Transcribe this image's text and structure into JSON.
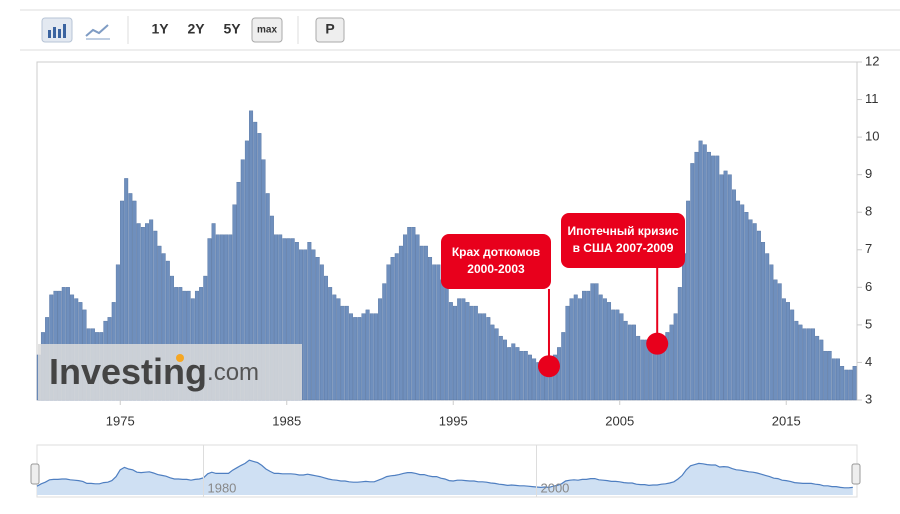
{
  "toolbar": {
    "range_buttons": [
      "1Y",
      "2Y",
      "5Y",
      "max"
    ],
    "print_button": "P"
  },
  "watermark": {
    "brand": "Investing",
    "suffix": ".com"
  },
  "chart_data": {
    "type": "bar",
    "color": "#6f8fbd",
    "xlim": [
      1970,
      2019.25
    ],
    "xticks": [
      1975,
      1985,
      1995,
      2005,
      2015
    ],
    "ylim": [
      3,
      12
    ],
    "yticks": [
      3,
      4,
      5,
      6,
      7,
      8,
      9,
      10,
      11,
      12
    ],
    "grid": false,
    "x": [
      1970,
      1970.25,
      1970.5,
      1970.75,
      1971,
      1971.25,
      1971.5,
      1971.75,
      1972,
      1972.25,
      1972.5,
      1972.75,
      1973,
      1973.25,
      1973.5,
      1973.75,
      1974,
      1974.25,
      1974.5,
      1974.75,
      1975,
      1975.25,
      1975.5,
      1975.75,
      1976,
      1976.25,
      1976.5,
      1976.75,
      1977,
      1977.25,
      1977.5,
      1977.75,
      1978,
      1978.25,
      1978.5,
      1978.75,
      1979,
      1979.25,
      1979.5,
      1979.75,
      1980,
      1980.25,
      1980.5,
      1980.75,
      1981,
      1981.25,
      1981.5,
      1981.75,
      1982,
      1982.25,
      1982.5,
      1982.75,
      1983,
      1983.25,
      1983.5,
      1983.75,
      1984,
      1984.25,
      1984.5,
      1984.75,
      1985,
      1985.25,
      1985.5,
      1985.75,
      1986,
      1986.25,
      1986.5,
      1986.75,
      1987,
      1987.25,
      1987.5,
      1987.75,
      1988,
      1988.25,
      1988.5,
      1988.75,
      1989,
      1989.25,
      1989.5,
      1989.75,
      1990,
      1990.25,
      1990.5,
      1990.75,
      1991,
      1991.25,
      1991.5,
      1991.75,
      1992,
      1992.25,
      1992.5,
      1992.75,
      1993,
      1993.25,
      1993.5,
      1993.75,
      1994,
      1994.25,
      1994.5,
      1994.75,
      1995,
      1995.25,
      1995.5,
      1995.75,
      1996,
      1996.25,
      1996.5,
      1996.75,
      1997,
      1997.25,
      1997.5,
      1997.75,
      1998,
      1998.25,
      1998.5,
      1998.75,
      1999,
      1999.25,
      1999.5,
      1999.75,
      2000,
      2000.25,
      2000.5,
      2000.75,
      2001,
      2001.25,
      2001.5,
      2001.75,
      2002,
      2002.25,
      2002.5,
      2002.75,
      2003,
      2003.25,
      2003.5,
      2003.75,
      2004,
      2004.25,
      2004.5,
      2004.75,
      2005,
      2005.25,
      2005.5,
      2005.75,
      2006,
      2006.25,
      2006.5,
      2006.75,
      2007,
      2007.25,
      2007.5,
      2007.75,
      2008,
      2008.25,
      2008.5,
      2008.75,
      2009,
      2009.25,
      2009.5,
      2009.75,
      2010,
      2010.25,
      2010.5,
      2010.75,
      2011,
      2011.25,
      2011.5,
      2011.75,
      2012,
      2012.25,
      2012.5,
      2012.75,
      2013,
      2013.25,
      2013.5,
      2013.75,
      2014,
      2014.25,
      2014.5,
      2014.75,
      2015,
      2015.25,
      2015.5,
      2015.75,
      2016,
      2016.25,
      2016.5,
      2016.75,
      2017,
      2017.25,
      2017.5,
      2017.75,
      2018,
      2018.25,
      2018.5,
      2018.75,
      2019
    ],
    "values": [
      4.2,
      4.8,
      5.2,
      5.8,
      5.9,
      5.9,
      6.0,
      6.0,
      5.8,
      5.7,
      5.6,
      5.4,
      4.9,
      4.9,
      4.8,
      4.8,
      5.1,
      5.2,
      5.6,
      6.6,
      8.3,
      8.9,
      8.5,
      8.3,
      7.7,
      7.6,
      7.7,
      7.8,
      7.5,
      7.1,
      6.9,
      6.7,
      6.3,
      6.0,
      6.0,
      5.9,
      5.9,
      5.7,
      5.9,
      6.0,
      6.3,
      7.3,
      7.7,
      7.4,
      7.4,
      7.4,
      7.4,
      8.2,
      8.8,
      9.4,
      9.9,
      10.7,
      10.4,
      10.1,
      9.4,
      8.5,
      7.9,
      7.4,
      7.4,
      7.3,
      7.3,
      7.3,
      7.2,
      7.0,
      7.0,
      7.2,
      7.0,
      6.8,
      6.6,
      6.3,
      6.0,
      5.8,
      5.7,
      5.5,
      5.5,
      5.3,
      5.2,
      5.2,
      5.3,
      5.4,
      5.3,
      5.3,
      5.7,
      6.1,
      6.6,
      6.8,
      6.9,
      7.1,
      7.4,
      7.6,
      7.6,
      7.4,
      7.1,
      7.1,
      6.8,
      6.6,
      6.6,
      6.2,
      6.0,
      5.6,
      5.5,
      5.7,
      5.7,
      5.6,
      5.5,
      5.5,
      5.3,
      5.3,
      5.2,
      5.0,
      4.9,
      4.7,
      4.6,
      4.4,
      4.5,
      4.4,
      4.3,
      4.3,
      4.2,
      4.1,
      4.0,
      3.9,
      4.0,
      3.9,
      4.2,
      4.4,
      4.8,
      5.5,
      5.7,
      5.8,
      5.7,
      5.9,
      5.9,
      6.1,
      6.1,
      5.8,
      5.7,
      5.6,
      5.4,
      5.4,
      5.3,
      5.1,
      5.0,
      5.0,
      4.7,
      4.6,
      4.6,
      4.4,
      4.5,
      4.5,
      4.7,
      4.8,
      5.0,
      5.3,
      6.0,
      6.9,
      8.3,
      9.3,
      9.6,
      9.9,
      9.8,
      9.6,
      9.5,
      9.5,
      9.0,
      9.1,
      9.0,
      8.6,
      8.3,
      8.2,
      8.0,
      7.8,
      7.7,
      7.5,
      7.2,
      6.9,
      6.6,
      6.2,
      6.1,
      5.7,
      5.6,
      5.4,
      5.1,
      5.0,
      4.9,
      4.9,
      4.9,
      4.7,
      4.6,
      4.3,
      4.3,
      4.1,
      4.1,
      3.9,
      3.8,
      3.8,
      3.9
    ],
    "annotations": [
      {
        "lines": [
          "Крах доткомов",
          "2000-2003"
        ],
        "x": 2000.75,
        "y": 3.9
      },
      {
        "lines": [
          "Ипотечный кризис",
          "в США 2007-2009"
        ],
        "x": 2007.25,
        "y": 4.5
      }
    ],
    "navigator": {
      "xticks": [
        1980,
        2000
      ]
    }
  }
}
